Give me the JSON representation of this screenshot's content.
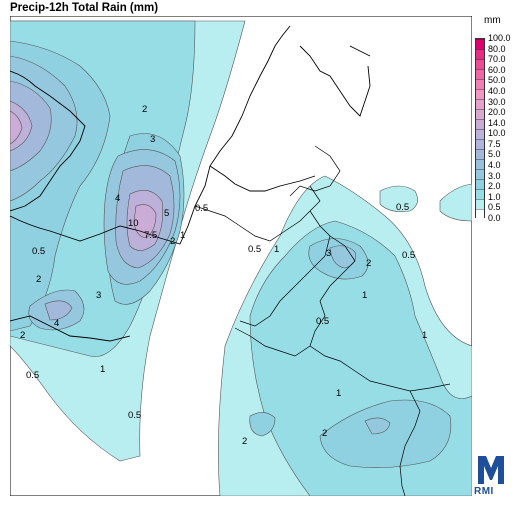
{
  "title": "Precip-12h Total Rain (mm)",
  "unit": "mm",
  "colorbar": {
    "levels": [
      "100.0",
      "80.0",
      "70.0",
      "60.0",
      "50.0",
      "40.0",
      "30.0",
      "20.0",
      "14.0",
      "10.0",
      "7.5",
      "5.0",
      "4.0",
      "3.0",
      "2.0",
      "1.0",
      "0.5",
      "0.0"
    ],
    "colors": [
      "#e0006e",
      "#e62d83",
      "#ea4b93",
      "#ee66a3",
      "#f07fb2",
      "#f296c2",
      "#e5a1cc",
      "#d8a8d2",
      "#caacd6",
      "#bdb1d9",
      "#b0b5db",
      "#a3b9db",
      "#9bc0dc",
      "#95c8de",
      "#8fd1e0",
      "#97dde6",
      "#b8eef0",
      "#ffffff"
    ]
  },
  "contour_labels": [
    "2",
    "3",
    "4",
    "5",
    "10",
    "7.5",
    "2",
    "1",
    "0.5",
    "0.5",
    "2",
    "3",
    "4",
    "2",
    "0.5",
    "1",
    "0.5",
    "1",
    "3",
    "2",
    "0.5",
    "1",
    "1",
    "0.5",
    "1",
    "2",
    "2",
    "0.5",
    "0.5"
  ],
  "logo": {
    "text": "RMI",
    "color": "#1d4f9b"
  }
}
